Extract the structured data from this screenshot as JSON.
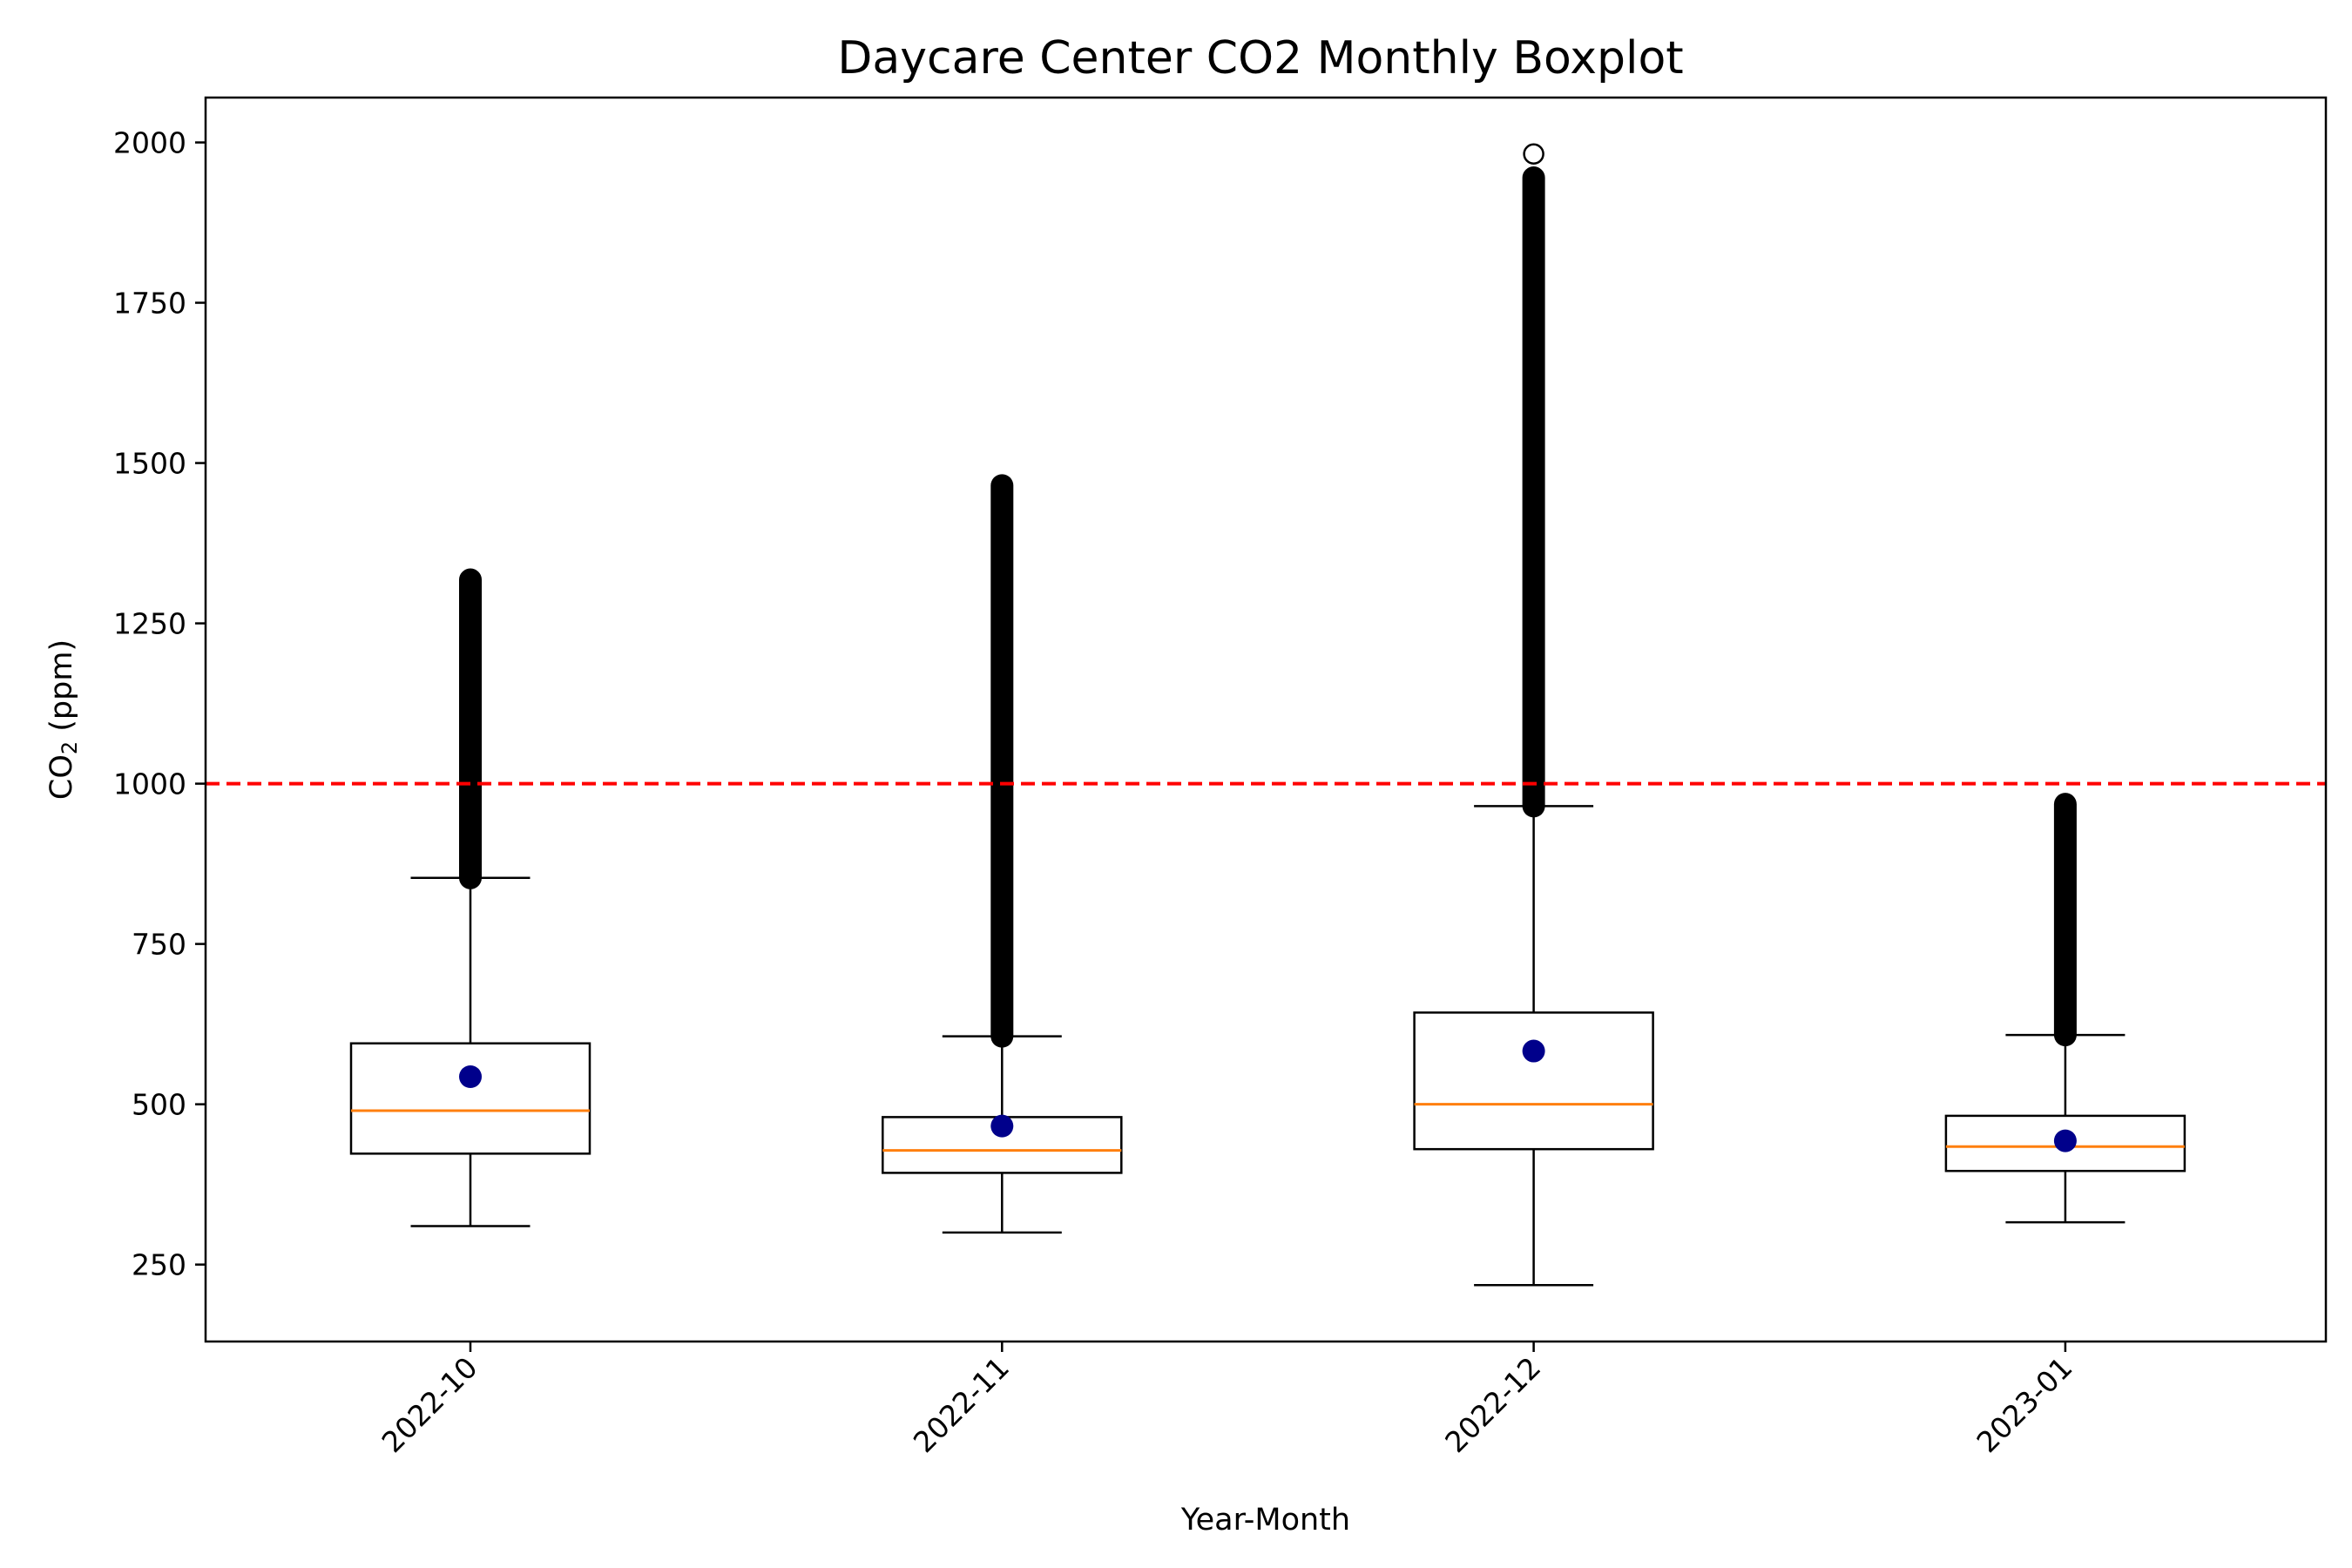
{
  "chart_data": {
    "type": "boxplot",
    "title": "Daycare Center CO2 Monthly Boxplot",
    "xlabel": "Year-Month",
    "ylabel_main": "CO",
    "ylabel_sub": "2",
    "ylabel_rest": " (ppm)",
    "ylim": [
      130,
      2070
    ],
    "yticks": [
      250,
      500,
      750,
      1000,
      1250,
      1500,
      1750,
      2000
    ],
    "categories": [
      "2022-10",
      "2022-11",
      "2022-12",
      "2023-01"
    ],
    "threshold": {
      "value": 1000,
      "color": "#ff0000",
      "style": "dashed"
    },
    "colors": {
      "median": "#ff7f0e",
      "mean": "#00008b",
      "box": "#000000"
    },
    "boxes": [
      {
        "label": "2022-10",
        "whisker_low": 310,
        "q1": 423,
        "median": 490,
        "q3": 595,
        "whisker_high": 853,
        "mean": 543,
        "outlier_range": [
          853,
          1318
        ]
      },
      {
        "label": "2022-11",
        "whisker_low": 300,
        "q1": 393,
        "median": 428,
        "q3": 480,
        "whisker_high": 606,
        "mean": 466,
        "outlier_range": [
          606,
          1465
        ]
      },
      {
        "label": "2022-12",
        "whisker_low": 218,
        "q1": 430,
        "median": 500,
        "q3": 643,
        "whisker_high": 965,
        "mean": 583,
        "outlier_range": [
          965,
          1945
        ],
        "extra_outliers": [
          1982
        ]
      },
      {
        "label": "2023-01",
        "whisker_low": 316,
        "q1": 396,
        "median": 434,
        "q3": 482,
        "whisker_high": 608,
        "mean": 443,
        "outlier_range": [
          608,
          968
        ]
      }
    ]
  }
}
